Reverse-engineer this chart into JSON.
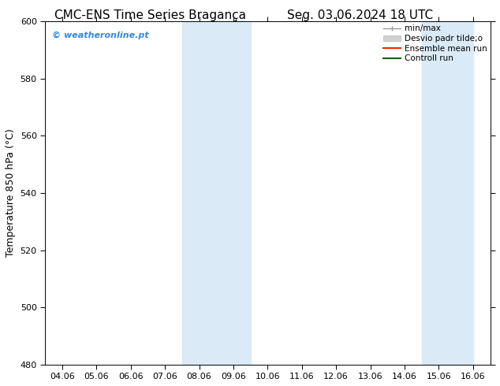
{
  "title_left": "CMC-ENS Time Series Bragança",
  "title_right": "Seg. 03.06.2024 18 UTC",
  "ylabel": "Temperature 850 hPa (°C)",
  "xlim_dates": [
    "04.06",
    "05.06",
    "06.06",
    "07.06",
    "08.06",
    "09.06",
    "10.06",
    "11.06",
    "12.06",
    "13.06",
    "14.06",
    "15.06",
    "16.06"
  ],
  "ylim": [
    480,
    600
  ],
  "yticks": [
    480,
    500,
    520,
    540,
    560,
    580,
    600
  ],
  "background_color": "#ffffff",
  "shaded_regions": [
    {
      "xstart": 4.0,
      "xend": 6.0,
      "color": "#daeaf7"
    },
    {
      "xstart": 11.0,
      "xend": 12.5,
      "color": "#daeaf7"
    }
  ],
  "watermark_text": "© weatheronline.pt",
  "watermark_color": "#3388dd",
  "title_fontsize": 11,
  "axis_fontsize": 9,
  "tick_fontsize": 8,
  "watermark_fontsize": 8,
  "legend_fontsize": 7.5
}
